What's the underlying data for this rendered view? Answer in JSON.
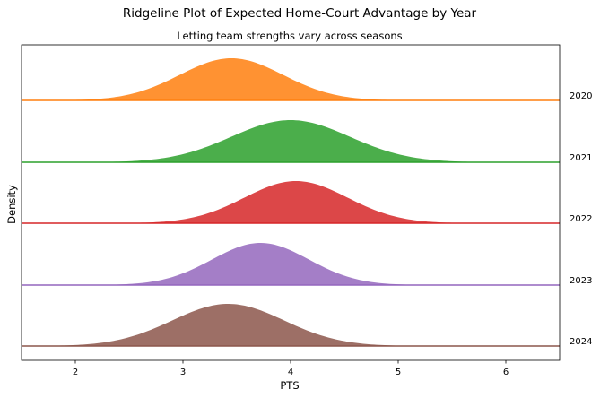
{
  "chart_data": {
    "type": "area",
    "title": "Ridgeline Plot of Expected Home-Court Advantage by Year",
    "subtitle": "Letting team strengths vary across seasons",
    "xlabel": "PTS",
    "ylabel": "Density",
    "xlim": [
      1.5,
      6.5
    ],
    "xticks": [
      "2",
      "3",
      "4",
      "5",
      "6"
    ],
    "grid": false,
    "series": [
      {
        "name": "2020",
        "color": "#ff7f0e",
        "mean": 3.45,
        "sd": 0.48
      },
      {
        "name": "2021",
        "color": "#2ca02c",
        "mean": 4.0,
        "sd": 0.55
      },
      {
        "name": "2022",
        "color": "#d62728",
        "mean": 4.05,
        "sd": 0.48
      },
      {
        "name": "2023",
        "color": "#9467bd",
        "mean": 3.72,
        "sd": 0.45
      },
      {
        "name": "2024",
        "color": "#8c564b",
        "mean": 3.42,
        "sd": 0.52
      }
    ]
  }
}
